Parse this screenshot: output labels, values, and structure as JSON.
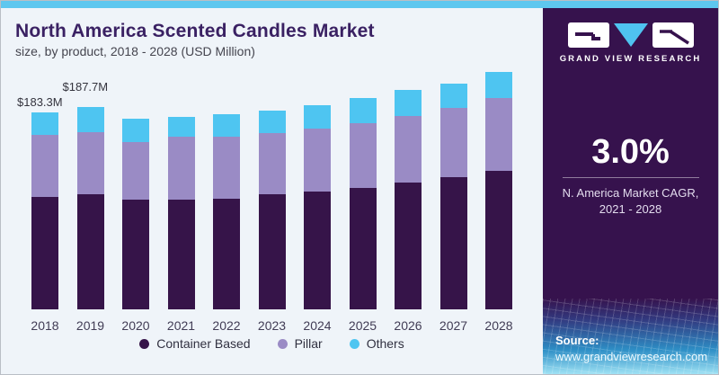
{
  "header": {
    "title": "North America Scented Candles Market",
    "subtitle": "size, by product, 2018 - 2028 (USD Million)"
  },
  "chart_data": {
    "type": "bar",
    "stacked": true,
    "title": "North America Scented Candles Market size, by product, 2018 - 2028 (USD Million)",
    "unit": "USD Million",
    "categories": [
      "2018",
      "2019",
      "2020",
      "2021",
      "2022",
      "2023",
      "2024",
      "2025",
      "2026",
      "2027",
      "2028"
    ],
    "series": [
      {
        "name": "Container Based",
        "color": "#361449",
        "values": [
          104.6,
          107.0,
          102.0,
          102.1,
          102.9,
          107.1,
          109.6,
          112.9,
          118.0,
          123.0,
          128.8
        ]
      },
      {
        "name": "Pillar",
        "color": "#9a8bc5",
        "values": [
          57.7,
          57.5,
          53.5,
          58.5,
          57.7,
          56.9,
          58.6,
          60.2,
          61.9,
          64.4,
          67.8
        ]
      },
      {
        "name": "Others",
        "color": "#4ec5f1",
        "values": [
          21.0,
          23.2,
          21.8,
          18.5,
          21.0,
          20.9,
          21.8,
          23.4,
          24.3,
          22.6,
          24.3
        ]
      }
    ],
    "totals": [
      183.3,
      187.7,
      177.3,
      179.1,
      181.6,
      184.9,
      190.0,
      196.5,
      204.2,
      210.0,
      220.9
    ],
    "annotations": [
      {
        "category_index": 0,
        "label": "$183.3M"
      },
      {
        "category_index": 1,
        "label": "$187.7M"
      }
    ],
    "legend_position": "bottom",
    "axes": "hidden",
    "ylim": [
      0,
      221
    ]
  },
  "sidebar": {
    "brand": "GRAND VIEW RESEARCH",
    "stat_value": "3.0%",
    "stat_caption_line1": "N. America Market CAGR,",
    "stat_caption_line2": "2021 - 2028",
    "source_label": "Source:",
    "source_url": "www.grandviewresearch.com",
    "colors": {
      "panel": "#36124d",
      "accent_strip": "#5ec7ef",
      "logo_triangle": "#4fc3f0"
    }
  }
}
